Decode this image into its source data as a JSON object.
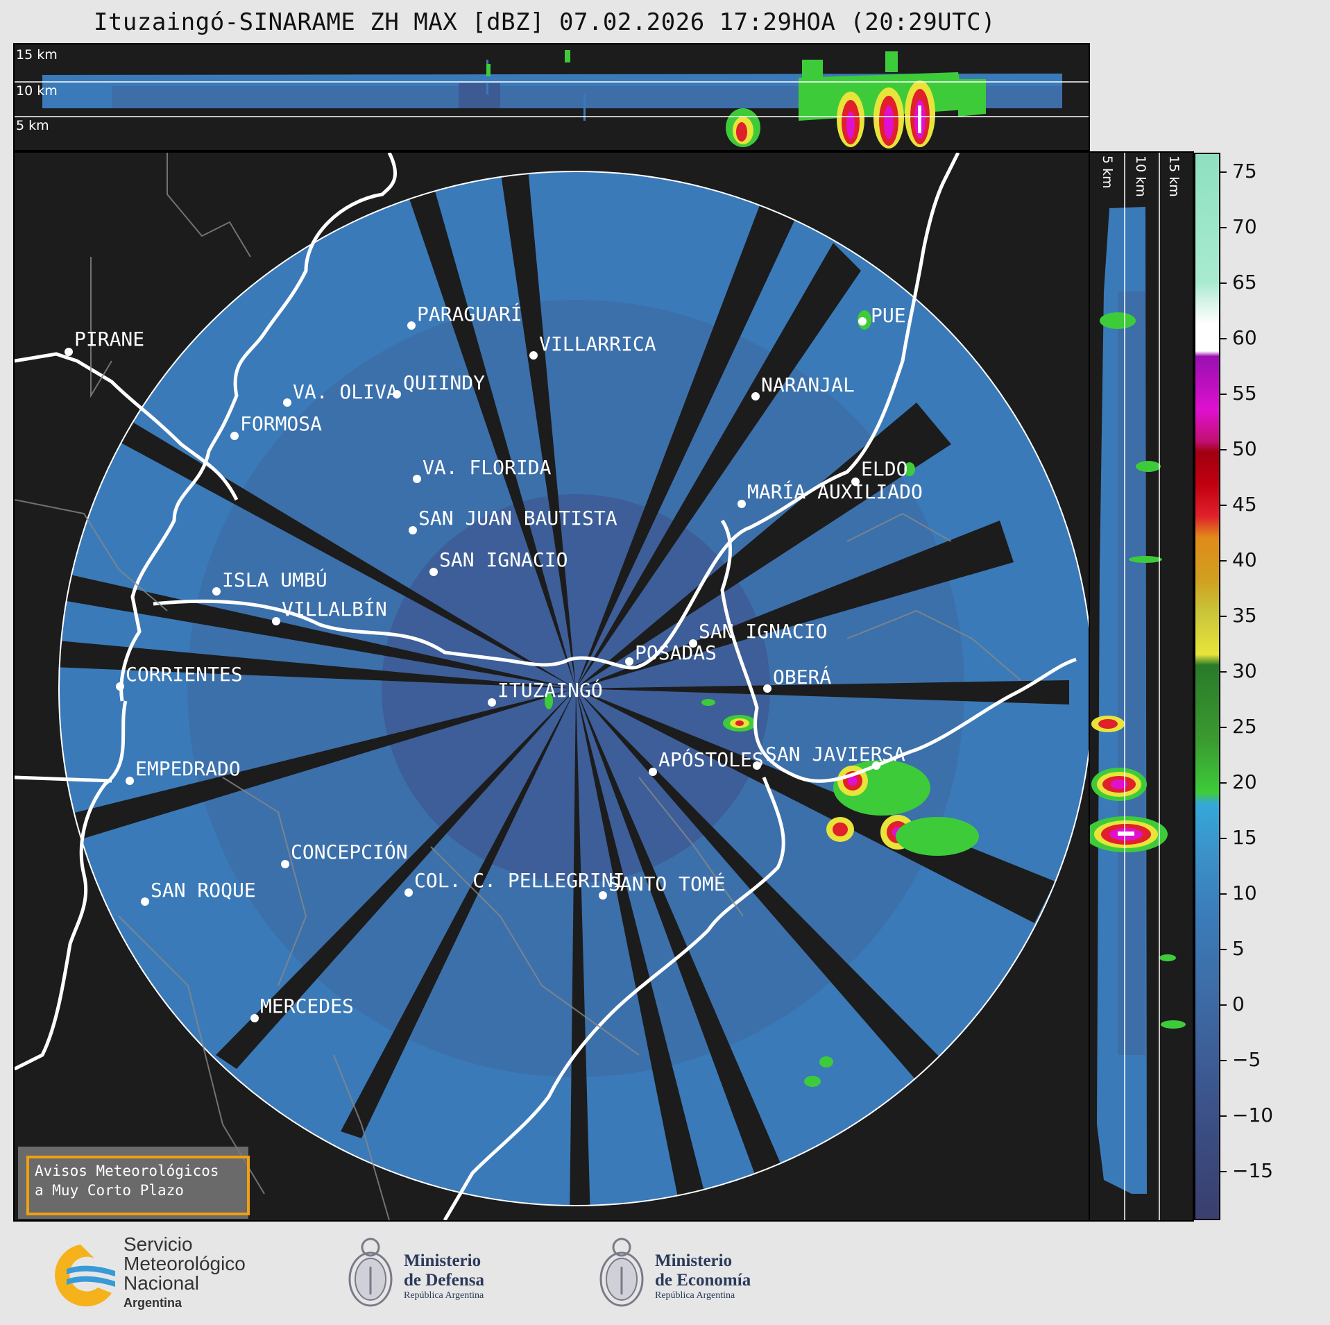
{
  "title": "Ituzaingó-SINARAME ZH MAX [dBZ] 07.02.2026 17:29HOA (20:29UTC)",
  "top_panel": {
    "height_labels": [
      "15 km",
      "10 km",
      "5 km"
    ]
  },
  "side_panel": {
    "height_labels": [
      "5 km",
      "10 km",
      "15 km"
    ]
  },
  "colorbar": {
    "ticks": [
      "75",
      "70",
      "65",
      "60",
      "55",
      "50",
      "45",
      "40",
      "35",
      "30",
      "25",
      "20",
      "15",
      "10",
      "5",
      "0",
      "−5",
      "−10",
      "−15"
    ],
    "colors": {
      "low": "#3a3f6e",
      "mid_low": "#3d5a93",
      "mid": "#3b7ab8",
      "cyan": "#35a8d8",
      "green": "#3ecb3a",
      "dark_green": "#2a7a2a",
      "yellow": "#e8e43a",
      "olive": "#c9c43a",
      "orange": "#e08a1a",
      "red": "#e0202a",
      "dark_red": "#a00010",
      "magenta": "#e010d0",
      "purple": "#9a10b0",
      "white": "#ffffff",
      "mint": "#8ee0c0"
    }
  },
  "cities": [
    {
      "name": "PIRANE"
    },
    {
      "name": "PARAGUARÍ"
    },
    {
      "name": "VILLARRICA"
    },
    {
      "name": "QUIINDY"
    },
    {
      "name": "VA. OLIVA"
    },
    {
      "name": "FORMOSA"
    },
    {
      "name": "NARANJAL"
    },
    {
      "name": "PUE"
    },
    {
      "name": "VA. FLORIDA"
    },
    {
      "name": "ELDO"
    },
    {
      "name": "MARÍA AUXILIADO"
    },
    {
      "name": "SAN JUAN BAUTISTA"
    },
    {
      "name": "SAN IGNACIO"
    },
    {
      "name": "ISLA UMBÚ"
    },
    {
      "name": "VILLALBÍN"
    },
    {
      "name": "SAN IGNACIO"
    },
    {
      "name": "POSADAS"
    },
    {
      "name": "CORRIENTES"
    },
    {
      "name": "OBERÁ"
    },
    {
      "name": "ITUZAINGÓ"
    },
    {
      "name": "APÓSTOLES"
    },
    {
      "name": "SAN JAVIER"
    },
    {
      "name": "SA"
    },
    {
      "name": "EMPEDRADO"
    },
    {
      "name": "CONCEPCIÓN"
    },
    {
      "name": "COL. C. PELLEGRINI"
    },
    {
      "name": "SANTO TOMÉ"
    },
    {
      "name": "SAN ROQUE"
    },
    {
      "name": "MERCEDES"
    }
  ],
  "warning": {
    "line1": "Avisos Meteorológicos",
    "line2": "a Muy Corto Plazo"
  },
  "logos": {
    "smn": {
      "line1": "Servicio",
      "line2": "Meteorológico",
      "line3": "Nacional",
      "line4": "Argentina"
    },
    "defensa": {
      "line1": "Ministerio",
      "line2": "de Defensa",
      "line3": "República Argentina"
    },
    "economia": {
      "line1": "Ministerio",
      "line2": "de Economía",
      "line3": "República Argentina"
    }
  }
}
